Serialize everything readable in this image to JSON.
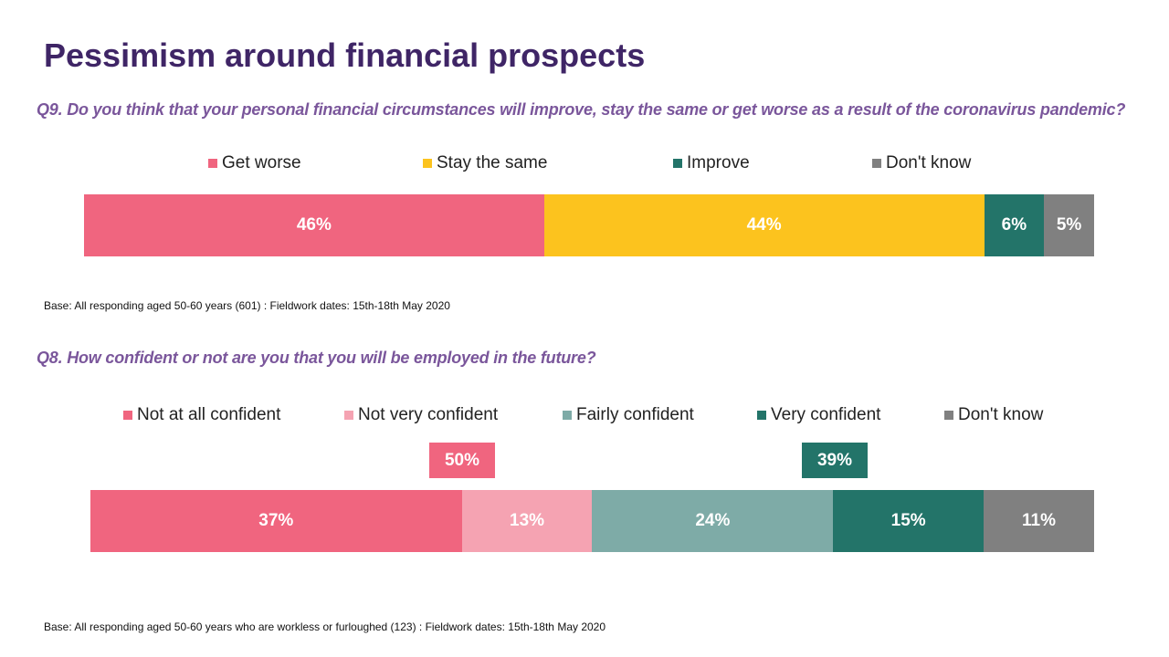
{
  "title": "Pessimism around financial prospects",
  "q9": {
    "question": "Q9. Do you think that your personal financial circumstances will improve, stay the same or get worse as a result of the coronavirus pandemic?",
    "base": "Base: All responding aged 50-60 years (601) : Fieldwork dates: 15th-18th May 2020"
  },
  "q8": {
    "question": "Q8. How confident or not are you that you will be employed in the future?",
    "base": "Base: All responding aged 50-60 years who are workless or furloughed (123) : Fieldwork dates: 15th-18th May 2020",
    "callouts": [
      {
        "label": "50%",
        "color": "#f0657f"
      },
      {
        "label": "39%",
        "color": "#237469"
      }
    ]
  },
  "chart_data": [
    {
      "type": "bar",
      "orientation": "horizontal-stacked-100",
      "series": [
        {
          "name": "Get worse",
          "values": [
            46
          ],
          "label": "46%",
          "color": "#f0657f"
        },
        {
          "name": "Stay the same",
          "values": [
            44
          ],
          "label": "44%",
          "color": "#fcc31e"
        },
        {
          "name": "Improve",
          "values": [
            6
          ],
          "label": "6%",
          "color": "#237469"
        },
        {
          "name": "Don't know",
          "values": [
            5
          ],
          "label": "5%",
          "color": "#808080"
        }
      ],
      "legend": "top"
    },
    {
      "type": "bar",
      "orientation": "horizontal-stacked-100",
      "series": [
        {
          "name": "Not at all confident",
          "values": [
            37
          ],
          "label": "37%",
          "color": "#f0657f"
        },
        {
          "name": "Not very confident",
          "values": [
            13
          ],
          "label": "13%",
          "color": "#f5a3b2"
        },
        {
          "name": "Fairly confident",
          "values": [
            24
          ],
          "label": "24%",
          "color": "#7eaba7"
        },
        {
          "name": "Very confident",
          "values": [
            15
          ],
          "label": "15%",
          "color": "#237469"
        },
        {
          "name": "Don't know",
          "values": [
            11
          ],
          "label": "11%",
          "color": "#808080"
        }
      ],
      "legend": "top"
    }
  ]
}
